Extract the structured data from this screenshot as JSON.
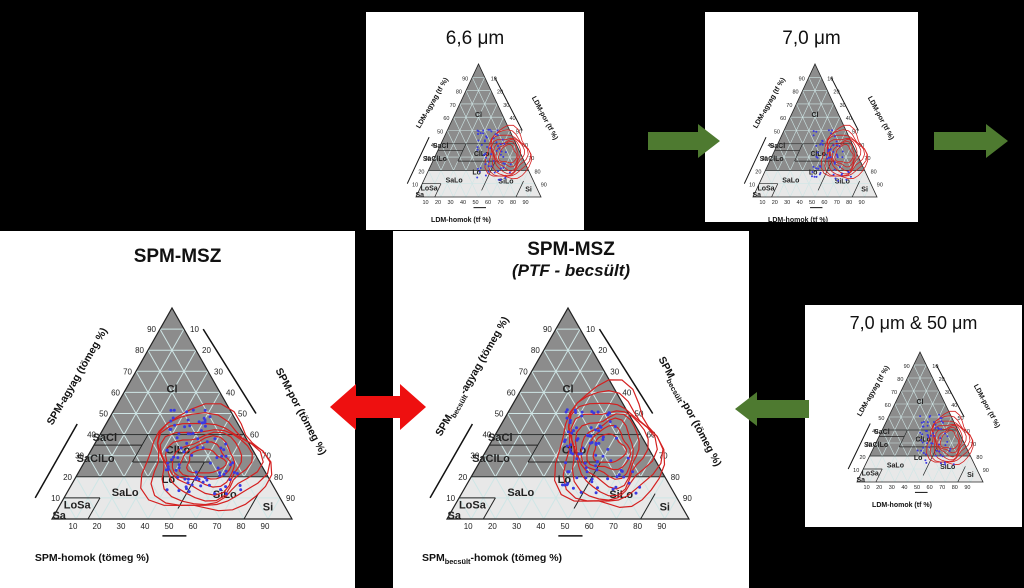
{
  "panels": {
    "top_left": {
      "title": "6,6 μm",
      "axis_clay": "LDM-agyag (tf %)",
      "axis_silt": "LDM-por (tf %)",
      "axis_sand": "LDM-homok (tf %)"
    },
    "top_right": {
      "title": "7,0 μm",
      "axis_clay": "LDM-agyag (tf %)",
      "axis_silt": "LDM-por (tf %)",
      "axis_sand": "LDM-homok (tf %)"
    },
    "mid_right": {
      "title": "7,0 μm & 50 μm",
      "axis_clay": "LDM-agyag (tf %)",
      "axis_silt": "LDM-por (tf %)",
      "axis_sand": "LDM-homok (tf %)"
    },
    "big_left": {
      "title": "SPM-MSZ",
      "axis_clay": "SPM-agyag (tömeg %)",
      "axis_silt": "SPM-por (tömeg %)",
      "axis_sand": "SPM-homok (tömeg %)"
    },
    "big_center": {
      "title": "SPM-MSZ",
      "subtitle": "(PTF - becsült)",
      "axis_clay_prefix": "SPM",
      "axis_clay_sub": "becsült",
      "axis_clay_suffix": "-agyag (tömeg %)",
      "axis_silt_prefix": "SPM",
      "axis_silt_sub": "becsült",
      "axis_silt_suffix": "-por (tömeg %)",
      "axis_sand_prefix": "SPM",
      "axis_sand_sub": "becsült",
      "axis_sand_suffix": "-homok (tömeg %)"
    }
  },
  "texture_classes": {
    "Cl": "Cl",
    "SaCl": "SaCl",
    "SaClLo": "SaClLo",
    "ClLo": "ClLo",
    "Lo": "Lo",
    "SaLo": "SaLo",
    "SiLo": "SiLo",
    "Si": "Si",
    "LoSa": "LoSa",
    "Sa": "Sa"
  },
  "ticks": [
    "10",
    "20",
    "30",
    "40",
    "50",
    "60",
    "70",
    "80",
    "90"
  ],
  "ticks_rev": [
    "90",
    "80",
    "70",
    "60",
    "50",
    "40",
    "30",
    "20",
    "10"
  ],
  "colors": {
    "triangle_fill": "#8c8c8c",
    "grid": "#cfe6e6",
    "contour": "#d42020",
    "points": "#3a3ae0",
    "arrow_green": "#4e7a30",
    "arrow_red": "#ee1010"
  }
}
